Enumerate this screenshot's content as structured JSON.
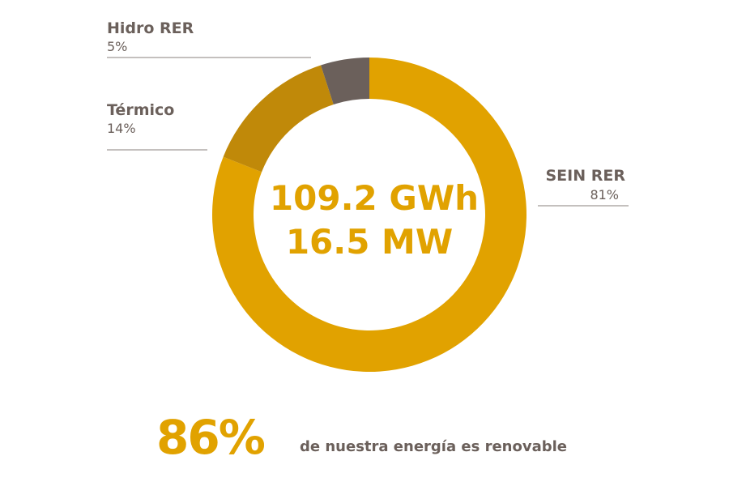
{
  "colors": {
    "gold": "#E1A200",
    "dark_gold": "#C08909",
    "gray": "#6B605B",
    "label_text": "#6B605B",
    "rule": "#8A817C",
    "background": "#FFFFFF"
  },
  "chart_data": {
    "type": "pie",
    "variant": "donut",
    "start": "top, clockwise",
    "center_lines": [
      "109.2 GWh",
      "16.5 MW"
    ],
    "slices": [
      {
        "name": "SEIN RER",
        "value": 81,
        "label": "81%",
        "color": "#E1A200",
        "label_side": "right"
      },
      {
        "name": "Térmico",
        "value": 14,
        "label": "14%",
        "color": "#C08909",
        "label_side": "left"
      },
      {
        "name": "Hidro RER",
        "value": 5,
        "label": "5%",
        "color": "#6B605B",
        "label_side": "left"
      }
    ]
  },
  "footer": {
    "big_percent": "86%",
    "caption": "de nuestra energía es renovable"
  }
}
